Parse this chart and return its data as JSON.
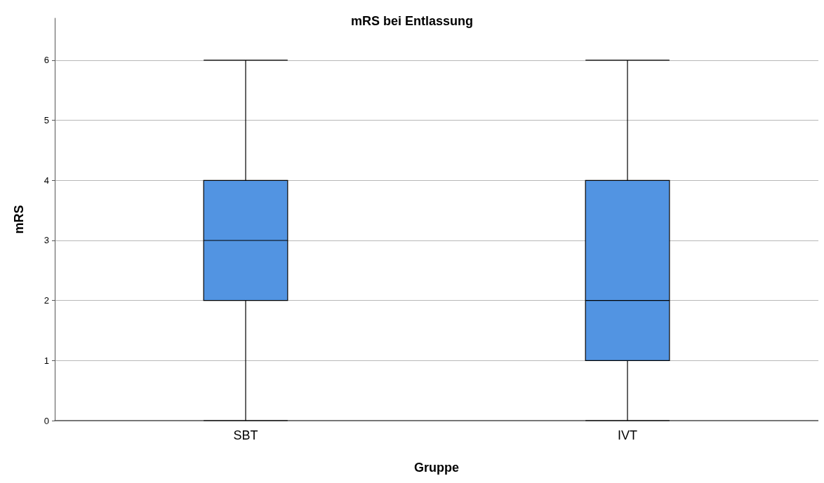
{
  "chart_data": {
    "type": "box",
    "title": "mRS bei Entlassung",
    "xlabel": "Gruppe",
    "ylabel": "mRS",
    "categories": [
      "SBT",
      "IVT"
    ],
    "series": [
      {
        "color": "#5294e2",
        "boxes": [
          {
            "low": 0,
            "q1": 2,
            "median": 3,
            "q3": 4,
            "high": 6
          },
          {
            "low": 0,
            "q1": 1,
            "median": 2,
            "q3": 4,
            "high": 6
          }
        ]
      }
    ],
    "ylim": [
      0,
      6.7
    ],
    "yticks": [
      0,
      1,
      2,
      3,
      4,
      5,
      6
    ],
    "grid": "y"
  }
}
